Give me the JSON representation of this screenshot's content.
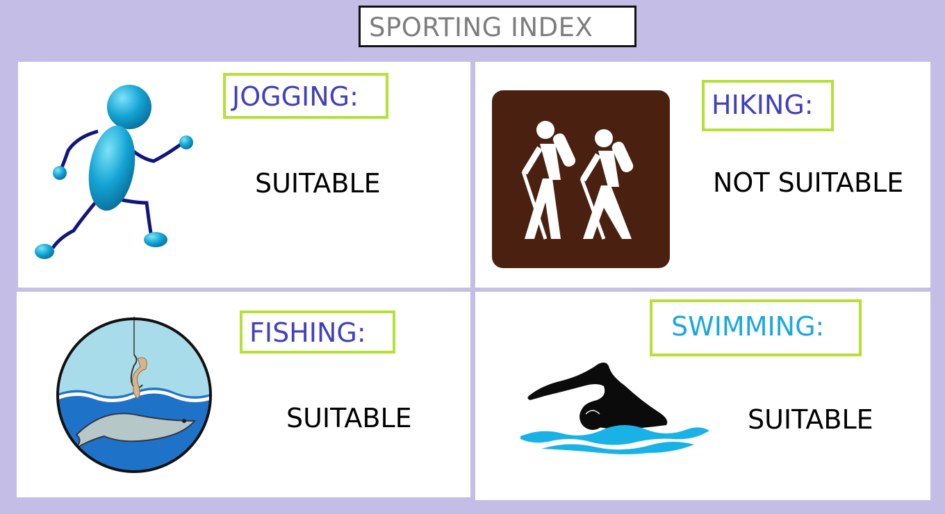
{
  "title": "SPORTING INDEX",
  "colors": {
    "background": "#c4bee6",
    "label_border": "#b5e034",
    "label_text": "#4040c0",
    "swim_label_text": "#1aa7e0",
    "title_text": "#7d7d7d"
  },
  "activities": [
    {
      "label": "JOGGING:",
      "status": "SUITABLE",
      "icon": "running-figure-icon"
    },
    {
      "label": "HIKING:",
      "status": "NOT SUITABLE",
      "icon": "hikers-sign-icon"
    },
    {
      "label": "FISHING:",
      "status": "SUITABLE",
      "icon": "fishing-hook-icon"
    },
    {
      "label": "SWIMMING:",
      "status": "SUITABLE",
      "icon": "swimmer-icon"
    }
  ]
}
